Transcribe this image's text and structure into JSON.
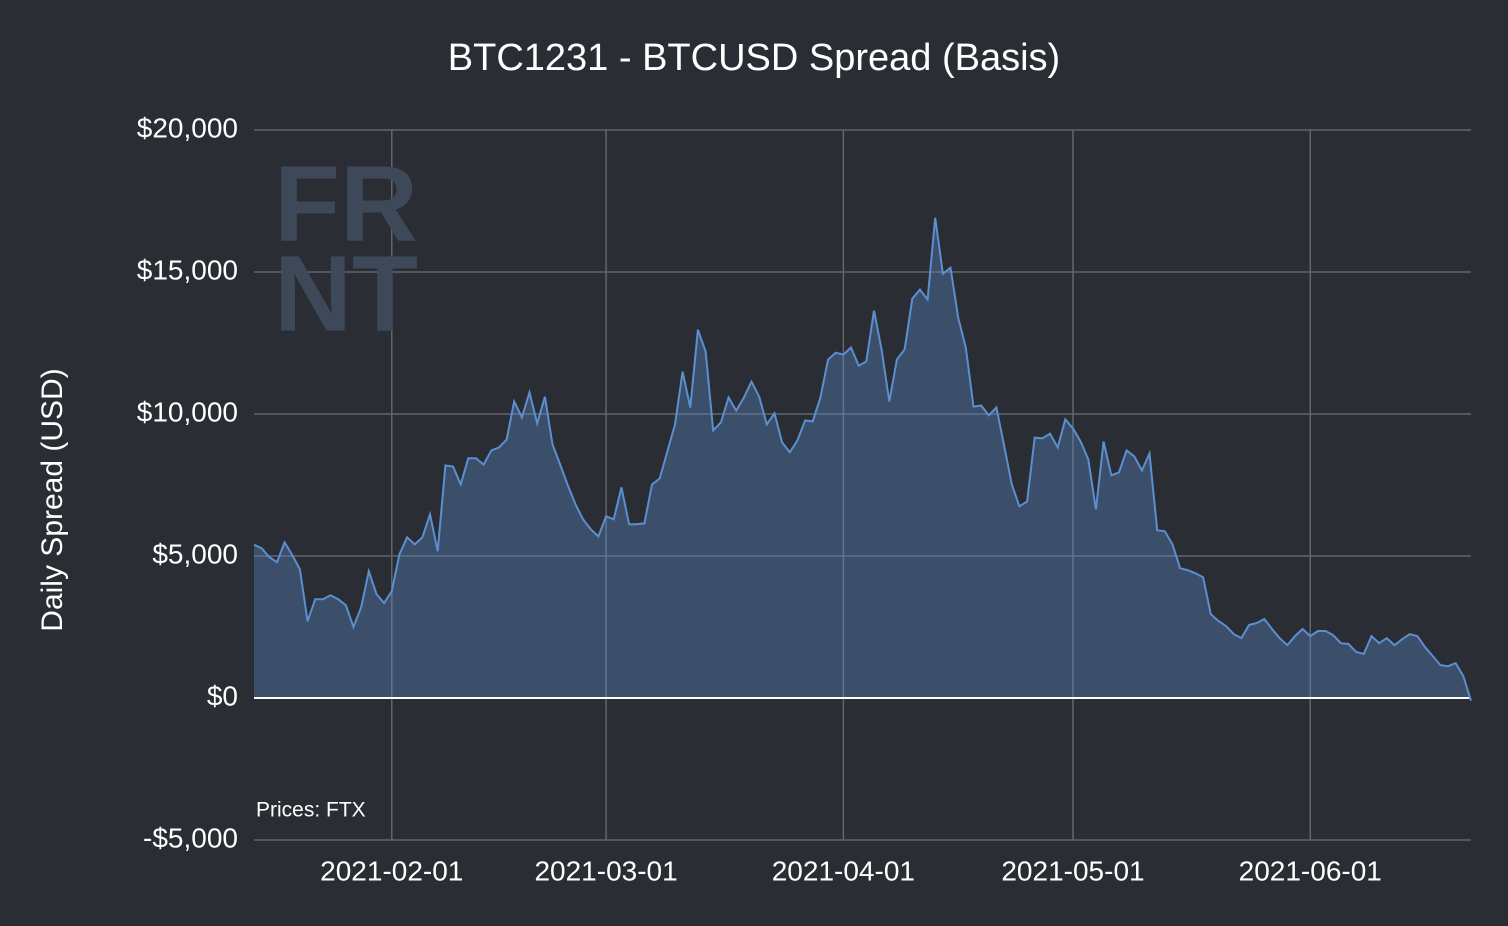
{
  "chart_data": {
    "type": "area",
    "title": "BTC1231 - BTCUSD Spread (Basis)",
    "ylabel": "Daily Spread (USD)",
    "annotation": "Prices: FTX",
    "watermark": [
      "FR",
      "NT"
    ],
    "xlim": [
      "2021-01-14",
      "2021-06-22"
    ],
    "xticks": [
      "2021-02-01",
      "2021-03-01",
      "2021-04-01",
      "2021-05-01",
      "2021-06-01"
    ],
    "ylim": [
      -5000,
      20000
    ],
    "yticks": [
      {
        "value": -5000,
        "label": "-$5,000"
      },
      {
        "value": 0,
        "label": "$0"
      },
      {
        "value": 5000,
        "label": "$5,000"
      },
      {
        "value": 10000,
        "label": "$10,000"
      },
      {
        "value": 15000,
        "label": "$15,000"
      },
      {
        "value": 20000,
        "label": "$20,000"
      }
    ],
    "grid": true,
    "color": "#5b8fd0",
    "x": [
      "2021-01-14",
      "2021-01-15",
      "2021-01-16",
      "2021-01-17",
      "2021-01-18",
      "2021-01-19",
      "2021-01-20",
      "2021-01-21",
      "2021-01-22",
      "2021-01-23",
      "2021-01-24",
      "2021-01-25",
      "2021-01-26",
      "2021-01-27",
      "2021-01-28",
      "2021-01-29",
      "2021-01-30",
      "2021-01-31",
      "2021-02-01",
      "2021-02-02",
      "2021-02-03",
      "2021-02-04",
      "2021-02-05",
      "2021-02-06",
      "2021-02-07",
      "2021-02-08",
      "2021-02-09",
      "2021-02-10",
      "2021-02-11",
      "2021-02-12",
      "2021-02-13",
      "2021-02-14",
      "2021-02-15",
      "2021-02-16",
      "2021-02-17",
      "2021-02-18",
      "2021-02-19",
      "2021-02-20",
      "2021-02-21",
      "2021-02-22",
      "2021-02-23",
      "2021-02-24",
      "2021-02-25",
      "2021-02-26",
      "2021-02-27",
      "2021-02-28",
      "2021-03-01",
      "2021-03-02",
      "2021-03-03",
      "2021-03-04",
      "2021-03-05",
      "2021-03-06",
      "2021-03-07",
      "2021-03-08",
      "2021-03-09",
      "2021-03-10",
      "2021-03-11",
      "2021-03-12",
      "2021-03-13",
      "2021-03-14",
      "2021-03-15",
      "2021-03-16",
      "2021-03-17",
      "2021-03-18",
      "2021-03-19",
      "2021-03-20",
      "2021-03-21",
      "2021-03-22",
      "2021-03-23",
      "2021-03-24",
      "2021-03-25",
      "2021-03-26",
      "2021-03-27",
      "2021-03-28",
      "2021-03-29",
      "2021-03-30",
      "2021-03-31",
      "2021-04-01",
      "2021-04-02",
      "2021-04-03",
      "2021-04-04",
      "2021-04-05",
      "2021-04-06",
      "2021-04-07",
      "2021-04-08",
      "2021-04-09",
      "2021-04-10",
      "2021-04-11",
      "2021-04-12",
      "2021-04-13",
      "2021-04-14",
      "2021-04-15",
      "2021-04-16",
      "2021-04-17",
      "2021-04-18",
      "2021-04-19",
      "2021-04-20",
      "2021-04-21",
      "2021-04-22",
      "2021-04-23",
      "2021-04-24",
      "2021-04-25",
      "2021-04-26",
      "2021-04-27",
      "2021-04-28",
      "2021-04-29",
      "2021-04-30",
      "2021-05-01",
      "2021-05-02",
      "2021-05-03",
      "2021-05-04",
      "2021-05-05",
      "2021-05-06",
      "2021-05-07",
      "2021-05-08",
      "2021-05-09",
      "2021-05-10",
      "2021-05-11",
      "2021-05-12",
      "2021-05-13",
      "2021-05-14",
      "2021-05-15",
      "2021-05-16",
      "2021-05-17",
      "2021-05-18",
      "2021-05-19",
      "2021-05-20",
      "2021-05-21",
      "2021-05-22",
      "2021-05-23",
      "2021-05-24",
      "2021-05-25",
      "2021-05-26",
      "2021-05-27",
      "2021-05-28",
      "2021-05-29",
      "2021-05-30",
      "2021-05-31",
      "2021-06-01",
      "2021-06-02",
      "2021-06-03",
      "2021-06-04",
      "2021-06-05",
      "2021-06-06",
      "2021-06-07",
      "2021-06-08",
      "2021-06-09",
      "2021-06-10",
      "2021-06-11",
      "2021-06-12",
      "2021-06-13",
      "2021-06-14",
      "2021-06-15",
      "2021-06-16",
      "2021-06-17",
      "2021-06-18",
      "2021-06-19",
      "2021-06-20",
      "2021-06-21",
      "2021-06-22"
    ],
    "values": [
      5400,
      5270,
      4960,
      4780,
      5480,
      5030,
      4530,
      2700,
      3480,
      3480,
      3620,
      3480,
      3270,
      2500,
      3200,
      4460,
      3660,
      3340,
      3760,
      5060,
      5660,
      5410,
      5660,
      6470,
      5170,
      8190,
      8150,
      7520,
      8440,
      8440,
      8220,
      8720,
      8820,
      9100,
      10440,
      9880,
      10760,
      9670,
      10610,
      8930,
      8220,
      7490,
      6820,
      6290,
      5940,
      5690,
      6400,
      6290,
      7420,
      6120,
      6120,
      6150,
      7520,
      7730,
      8680,
      9630,
      11490,
      10230,
      12970,
      12200,
      9420,
      9700,
      10580,
      10120,
      10580,
      11140,
      10610,
      9630,
      10020,
      9000,
      8650,
      9070,
      9770,
      9740,
      10580,
      11920,
      12160,
      12090,
      12340,
      11700,
      11850,
      13640,
      12270,
      10440,
      11920,
      12270,
      14060,
      14380,
      14030,
      16910,
      14940,
      15150,
      13390,
      12340,
      10260,
      10300,
      9950,
      10230,
      8890,
      7520,
      6750,
      6920,
      9170,
      9140,
      9310,
      8820,
      9810,
      9490,
      9030,
      8400,
      6640,
      9030,
      7840,
      7940,
      8720,
      8510,
      8010,
      8610,
      5910,
      5870,
      5410,
      4570,
      4500,
      4390,
      4250,
      2950,
      2710,
      2530,
      2250,
      2110,
      2570,
      2640,
      2780,
      2430,
      2110,
      1860,
      2180,
      2430,
      2180,
      2360,
      2360,
      2210,
      1930,
      1900,
      1620,
      1550,
      2180,
      1930,
      2110,
      1860,
      2070,
      2250,
      2180,
      1790,
      1480,
      1160,
      1120,
      1230,
      770,
      -100
    ]
  }
}
